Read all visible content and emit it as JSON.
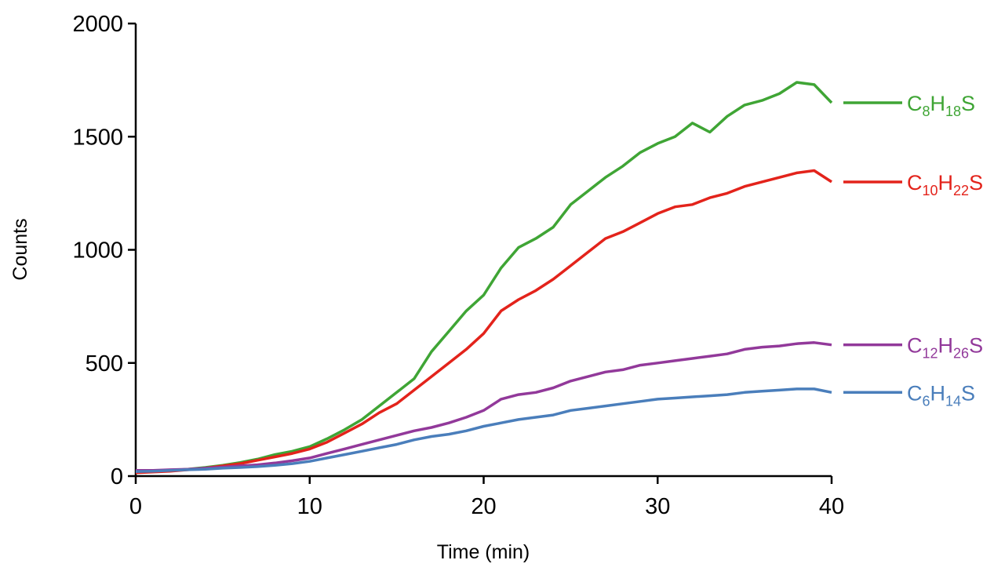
{
  "chart_data": {
    "type": "line",
    "x_label": "Time (min)",
    "y_label": "Counts",
    "x": [
      0,
      1,
      2,
      3,
      4,
      5,
      6,
      7,
      8,
      9,
      10,
      11,
      12,
      13,
      14,
      15,
      16,
      17,
      18,
      19,
      20,
      21,
      22,
      23,
      24,
      25,
      26,
      27,
      28,
      29,
      30,
      31,
      32,
      33,
      34,
      35,
      36,
      37,
      38,
      39,
      40
    ],
    "series": [
      {
        "name": "C8H18S",
        "color": "#3fa535",
        "values": [
          20,
          22,
          25,
          30,
          38,
          48,
          60,
          75,
          95,
          110,
          130,
          165,
          205,
          250,
          310,
          370,
          430,
          550,
          640,
          730,
          800,
          920,
          1010,
          1050,
          1100,
          1200,
          1260,
          1320,
          1370,
          1430,
          1470,
          1500,
          1560,
          1520,
          1590,
          1640,
          1660,
          1690,
          1740,
          1730,
          1650
        ]
      },
      {
        "name": "C10H22S",
        "color": "#e3231b",
        "values": [
          15,
          18,
          22,
          28,
          35,
          45,
          55,
          70,
          85,
          100,
          120,
          150,
          190,
          230,
          280,
          320,
          380,
          440,
          500,
          560,
          630,
          730,
          780,
          820,
          870,
          930,
          990,
          1050,
          1080,
          1120,
          1160,
          1190,
          1200,
          1230,
          1250,
          1280,
          1300,
          1320,
          1340,
          1350,
          1300
        ]
      },
      {
        "name": "C12H26S",
        "color": "#92399a",
        "values": [
          25,
          25,
          28,
          30,
          35,
          40,
          45,
          50,
          58,
          68,
          80,
          100,
          120,
          140,
          160,
          180,
          200,
          215,
          235,
          260,
          290,
          340,
          360,
          370,
          390,
          420,
          440,
          460,
          470,
          490,
          500,
          510,
          520,
          530,
          540,
          560,
          570,
          575,
          585,
          590,
          580
        ]
      },
      {
        "name": "C6H14S",
        "color": "#4a7ebb",
        "values": [
          20,
          22,
          25,
          28,
          30,
          35,
          38,
          42,
          48,
          55,
          65,
          80,
          95,
          110,
          125,
          140,
          160,
          175,
          185,
          200,
          220,
          235,
          250,
          260,
          270,
          290,
          300,
          310,
          320,
          330,
          340,
          345,
          350,
          355,
          360,
          370,
          375,
          380,
          385,
          385,
          370
        ]
      }
    ],
    "xlim": [
      0,
      40
    ],
    "xticks": [
      0,
      10,
      20,
      30,
      40
    ],
    "ylim": [
      0,
      2000
    ],
    "yticks": [
      0,
      500,
      1000,
      1500,
      2000
    ]
  }
}
